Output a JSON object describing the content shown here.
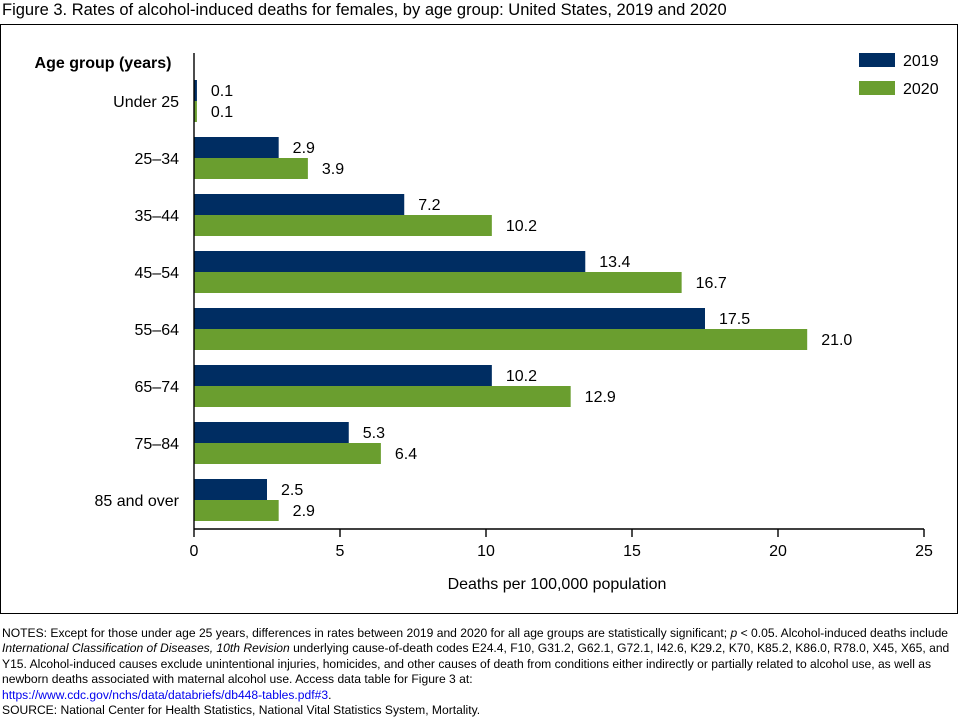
{
  "title": "Figure 3. Rates of alcohol-induced deaths for females, by age group: United States, 2019 and 2020",
  "chart_data": {
    "type": "bar",
    "orientation": "horizontal",
    "title": "Figure 3. Rates of alcohol-induced deaths for females, by age group: United States, 2019 and 2020",
    "category_axis_title": "Age group (years)",
    "xlabel": "Deaths per 100,000 population",
    "categories": [
      "Under 25",
      "25–34",
      "35–44",
      "45–54",
      "55–64",
      "65–74",
      "75–84",
      "85 and over"
    ],
    "series": [
      {
        "name": "2019",
        "color": "#002d62",
        "values": [
          0.1,
          2.9,
          7.2,
          13.4,
          17.5,
          10.2,
          5.3,
          2.5
        ],
        "labels": [
          "0.1",
          "2.9",
          "7.2",
          "13.4",
          "17.5",
          "10.2",
          "5.3",
          "2.5"
        ]
      },
      {
        "name": "2020",
        "color": "#6a9e2f",
        "values": [
          0.1,
          3.9,
          10.2,
          16.7,
          21.0,
          12.9,
          6.4,
          2.9
        ],
        "labels": [
          "0.1",
          "3.9",
          "10.2",
          "16.7",
          "21.0",
          "12.9",
          "6.4",
          "2.9"
        ]
      }
    ],
    "xlim": [
      0,
      25
    ],
    "xticks": [
      0,
      5,
      10,
      15,
      20,
      25
    ],
    "xtick_labels": [
      "0",
      "5",
      "10",
      "15",
      "20",
      "25"
    ],
    "grid": false,
    "legend": "top-right"
  },
  "notes": {
    "lead": "NOTES: Except for those under age 25 years, differences in rates between 2019 and 2020 for all age groups are statistically significant; ",
    "p_symbol": "p",
    "after_p": " < 0.05. Alcohol-induced deaths include ",
    "icd_title": "International Classification of Diseases, 10th Revision",
    "after_icd": "  underlying cause-of-death codes E24.4, F10, G31.2, G62.1, G72.1, I42.6, K29.2, K70, K85.2, K86.0, R78.0, X45, X65, and Y15. Alcohol-induced causes exclude unintentional injuries, homicides, and other causes of death from conditions either indirectly or partially related to alcohol use, as well as newborn deaths associated with maternal alcohol use. Access data table for Figure 3 at:",
    "link": "https://www.cdc.gov/nchs/data/databriefs/db448-tables.pdf#3",
    "link_suffix": ".",
    "source": "SOURCE: National Center for Health Statistics, National Vital Statistics System, Mortality."
  }
}
